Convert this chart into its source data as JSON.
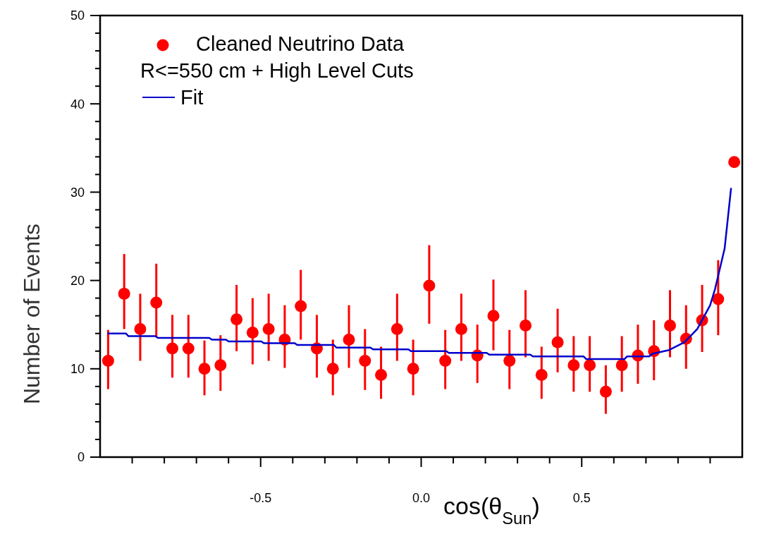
{
  "chart_data": {
    "type": "scatter",
    "xlabel": "cos(θ$_{Sun}$)",
    "ylabel": "Number of Events",
    "xlim": [
      -1,
      1
    ],
    "ylim": [
      0,
      50
    ],
    "xticks": [
      {
        "value": -0.9,
        "label": null
      },
      {
        "value": -0.8,
        "label": null
      },
      {
        "value": -0.7,
        "label": null
      },
      {
        "value": -0.6,
        "label": null
      },
      -0.5,
      {
        "value": -0.4,
        "label": null
      },
      {
        "value": -0.3,
        "label": null
      },
      {
        "value": -0.2,
        "label": null
      },
      {
        "value": -0.1,
        "label": null
      },
      {
        "value": 0,
        "label": "0.0"
      },
      {
        "value": 0.1,
        "label": null
      },
      {
        "value": 0.2,
        "label": null
      },
      {
        "value": 0.3,
        "label": null
      },
      {
        "value": 0.4,
        "label": null
      },
      0.5,
      {
        "value": 0.6,
        "label": null
      },
      {
        "value": 0.7,
        "label": null
      },
      {
        "value": 0.8,
        "label": null
      },
      {
        "value": 0.9,
        "label": null
      }
    ],
    "yticks": [
      0,
      {
        "value": 2,
        "label": null
      },
      {
        "value": 4,
        "label": null
      },
      {
        "value": 6,
        "label": null
      },
      {
        "value": 8,
        "label": null
      },
      10,
      {
        "value": 12,
        "label": null
      },
      {
        "value": 14,
        "label": null
      },
      {
        "value": 16,
        "label": null
      },
      {
        "value": 18,
        "label": null
      },
      20,
      {
        "value": 22,
        "label": null
      },
      {
        "value": 24,
        "label": null
      },
      {
        "value": 26,
        "label": null
      },
      {
        "value": 28,
        "label": null
      },
      30,
      {
        "value": 32,
        "label": null
      },
      {
        "value": 34,
        "label": null
      },
      {
        "value": 36,
        "label": null
      },
      {
        "value": 38,
        "label": null
      },
      40,
      {
        "value": 42,
        "label": null
      },
      {
        "value": 44,
        "label": null
      },
      {
        "value": 46,
        "label": null
      },
      {
        "value": 48,
        "label": null
      },
      50
    ],
    "legend": "top left",
    "annotations": [
      "R<=550 cm + High Level Cuts"
    ],
    "series": [
      {
        "name": "Cleaned Neutrino Data",
        "color": "#ff0000",
        "marker": "circle",
        "x": [
          -0.975,
          -0.925,
          -0.875,
          -0.825,
          -0.775,
          -0.725,
          -0.675,
          -0.625,
          -0.575,
          -0.525,
          -0.475,
          -0.425,
          -0.375,
          -0.325,
          -0.275,
          -0.225,
          -0.175,
          -0.125,
          -0.075,
          -0.025,
          0.025,
          0.075,
          0.125,
          0.175,
          0.225,
          0.275,
          0.325,
          0.375,
          0.425,
          0.475,
          0.525,
          0.575,
          0.625,
          0.675,
          0.725,
          0.775,
          0.825,
          0.875,
          0.925,
          0.975
        ],
        "values": [
          10.9,
          18.5,
          14.5,
          17.5,
          12.3,
          12.3,
          10.0,
          10.4,
          15.6,
          14.1,
          14.5,
          13.3,
          17.1,
          12.3,
          10.0,
          13.3,
          10.9,
          9.3,
          14.5,
          10.0,
          19.4,
          10.9,
          14.5,
          11.5,
          16.0,
          10.9,
          14.9,
          9.3,
          13.0,
          10.4,
          10.4,
          7.4,
          10.4,
          11.5,
          12.0,
          14.9,
          13.4,
          15.5,
          17.9,
          33.4
        ],
        "errors": [
          [
            7.7,
            14.4
          ],
          [
            14.5,
            23.0
          ],
          [
            10.9,
            18.5
          ],
          [
            13.6,
            21.9
          ],
          [
            9.0,
            16.1
          ],
          [
            9.0,
            16.1
          ],
          [
            7.0,
            13.2
          ],
          [
            7.5,
            13.8
          ],
          [
            12.0,
            19.5
          ],
          [
            10.5,
            18.0
          ],
          [
            10.9,
            18.5
          ],
          [
            10.1,
            17.2
          ],
          [
            13.3,
            21.2
          ],
          [
            9.0,
            16.1
          ],
          [
            7.0,
            13.3
          ],
          [
            10.1,
            17.2
          ],
          [
            7.6,
            14.5
          ],
          [
            6.6,
            12.5
          ],
          [
            10.9,
            18.5
          ],
          [
            7.0,
            13.3
          ],
          [
            15.1,
            24.0
          ],
          [
            7.7,
            14.4
          ],
          [
            10.9,
            18.5
          ],
          [
            8.4,
            15.0
          ],
          [
            12.1,
            20.1
          ],
          [
            7.7,
            14.4
          ],
          [
            11.3,
            18.9
          ],
          [
            6.6,
            12.5
          ],
          [
            9.6,
            16.8
          ],
          [
            7.4,
            13.7
          ],
          [
            7.4,
            13.7
          ],
          [
            4.9,
            10.4
          ],
          [
            7.4,
            13.7
          ],
          [
            8.3,
            15.0
          ],
          [
            8.7,
            15.5
          ],
          [
            11.3,
            18.9
          ],
          [
            10.0,
            17.2
          ],
          [
            11.9,
            19.5
          ],
          [
            13.8,
            22.3
          ],
          null
        ]
      },
      {
        "name": "Fit",
        "type": "line",
        "color": "#0000cc",
        "line_style": "solid",
        "x": [
          -0.975,
          -0.92,
          -0.912,
          -0.828,
          -0.82,
          -0.66,
          -0.652,
          -0.608,
          -0.6,
          -0.498,
          -0.49,
          -0.394,
          -0.386,
          -0.272,
          -0.264,
          -0.158,
          -0.15,
          -0.04,
          -0.032,
          0.078,
          0.086,
          0.204,
          0.212,
          0.34,
          0.348,
          0.506,
          0.514,
          0.633,
          0.641,
          0.71,
          0.72,
          0.77,
          0.82,
          0.86,
          0.9,
          0.915,
          0.945,
          0.965
        ],
        "values": [
          14.0,
          14.0,
          13.7,
          13.7,
          13.5,
          13.5,
          13.3,
          13.3,
          13.1,
          13.1,
          12.9,
          12.9,
          12.7,
          12.7,
          12.4,
          12.4,
          12.2,
          12.2,
          12.0,
          12.0,
          11.8,
          11.8,
          11.6,
          11.6,
          11.4,
          11.4,
          11.1,
          11.1,
          11.4,
          11.4,
          11.7,
          12.1,
          13.0,
          14.5,
          17.2,
          19.0,
          23.6,
          30.4
        ]
      }
    ]
  }
}
